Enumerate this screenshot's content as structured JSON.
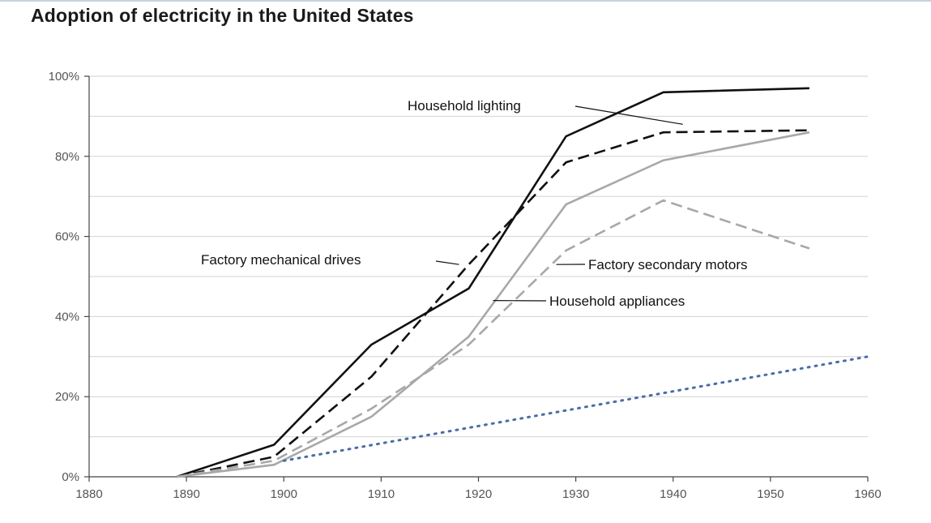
{
  "chart_data": {
    "type": "line",
    "title": "Adoption of electricity in the United States",
    "xlabel": "",
    "ylabel": "",
    "xlim": [
      1880,
      1960
    ],
    "ylim": [
      0,
      100
    ],
    "x_ticks": [
      1880,
      1890,
      1900,
      1910,
      1920,
      1930,
      1940,
      1950,
      1960
    ],
    "y_ticks": [
      0,
      20,
      40,
      60,
      80,
      100
    ],
    "y_tick_labels": [
      "0%",
      "20%",
      "40%",
      "60%",
      "80%",
      "100%"
    ],
    "minor_gridlines_y": [
      10,
      30,
      50,
      70,
      90
    ],
    "grid": "horizontal",
    "legend": "inline labels",
    "series": [
      {
        "name": "Household lighting",
        "style": "solid",
        "color": "#111111",
        "points": [
          [
            1889,
            0
          ],
          [
            1899,
            8
          ],
          [
            1909,
            33
          ],
          [
            1919,
            47
          ],
          [
            1929,
            85
          ],
          [
            1939,
            96
          ],
          [
            1954,
            97
          ]
        ],
        "label_anchor": [
          1941,
          88
        ]
      },
      {
        "name": "Factory mechanical drives",
        "style": "dashed",
        "color": "#111111",
        "points": [
          [
            1889,
            0
          ],
          [
            1899,
            5
          ],
          [
            1909,
            25
          ],
          [
            1919,
            53
          ],
          [
            1929,
            78.5
          ],
          [
            1939,
            86
          ],
          [
            1954,
            86.5
          ]
        ],
        "label_anchor": [
          1918,
          53
        ]
      },
      {
        "name": "Household appliances",
        "style": "solid",
        "color": "#a8a8a8",
        "points": [
          [
            1889,
            0
          ],
          [
            1899,
            3
          ],
          [
            1909,
            15
          ],
          [
            1919,
            35
          ],
          [
            1929,
            68
          ],
          [
            1939,
            79
          ],
          [
            1954,
            86
          ]
        ],
        "label_anchor": [
          1921.5,
          44
        ]
      },
      {
        "name": "Factory secondary motors",
        "style": "dashed",
        "color": "#a8a8a8",
        "points": [
          [
            1889,
            0
          ],
          [
            1899,
            4
          ],
          [
            1909,
            17
          ],
          [
            1919,
            33
          ],
          [
            1929,
            56.5
          ],
          [
            1939,
            69
          ],
          [
            1954,
            57
          ]
        ],
        "label_anchor": [
          1928,
          53
        ]
      },
      {
        "name": "",
        "style": "dotted",
        "color": "#4a6ca8",
        "points": [
          [
            1900,
            4
          ],
          [
            1960,
            30
          ]
        ]
      }
    ]
  }
}
